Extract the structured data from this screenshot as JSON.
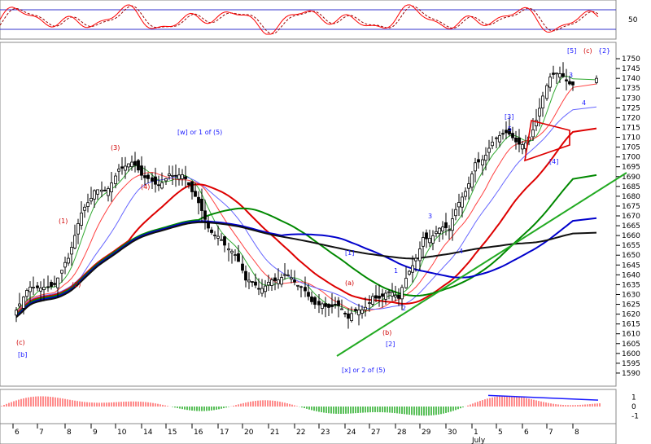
{
  "chart_data": [
    {
      "type": "line",
      "panel": "oscillator",
      "yticks": [
        50
      ],
      "ylim": [
        0,
        100
      ],
      "reference_lines": [
        80,
        20
      ],
      "series": [
        {
          "color": "#ff0000",
          "style": "solid"
        },
        {
          "color": "#990000",
          "style": "dashed"
        }
      ]
    },
    {
      "type": "candlestick",
      "panel": "price",
      "ylim": [
        1585,
        1755
      ],
      "yticks": [
        1590,
        1595,
        1600,
        1605,
        1610,
        1615,
        1620,
        1625,
        1630,
        1635,
        1640,
        1645,
        1650,
        1655,
        1660,
        1665,
        1670,
        1675,
        1680,
        1685,
        1690,
        1695,
        1700,
        1705,
        1710,
        1715,
        1720,
        1725,
        1730,
        1735,
        1740,
        1745,
        1750
      ],
      "x_days": [
        {
          "label": "6",
          "close": 1622
        },
        {
          "label": "7",
          "close": 1633
        },
        {
          "label": "8",
          "close": 1649
        },
        {
          "label": "9",
          "close": 1682
        },
        {
          "label": "10",
          "close": 1695
        },
        {
          "label": "14",
          "close": 1688
        },
        {
          "label": "15",
          "close": 1693
        },
        {
          "label": "16",
          "close": 1678
        },
        {
          "label": "17",
          "close": 1660
        },
        {
          "label": "20",
          "close": 1635
        },
        {
          "label": "21",
          "close": 1640
        },
        {
          "label": "22",
          "close": 1632
        },
        {
          "label": "23",
          "close": 1628
        },
        {
          "label": "24",
          "close": 1615
        },
        {
          "label": "27",
          "close": 1632
        },
        {
          "label": "28",
          "close": 1625
        },
        {
          "label": "29",
          "close": 1662
        },
        {
          "label": "30",
          "close": 1660
        },
        {
          "label": "1",
          "close": 1700
        },
        {
          "label": "5",
          "close": 1708
        },
        {
          "label": "6",
          "close": 1710
        },
        {
          "label": "7",
          "close": 1738
        },
        {
          "label": "8",
          "close": 1740
        }
      ],
      "month_label": "July",
      "moving_average_colors": [
        "#33aa33",
        "#ff4040",
        "#6666ff",
        "#dd0000",
        "#008800",
        "#0000cc",
        "#111111"
      ],
      "annotations": [
        {
          "text": "[w] or 1 of (5)",
          "color": "#1a1aff"
        },
        {
          "text": "[x] or 2 of (5)",
          "color": "#1a1aff"
        },
        {
          "text": "(3)",
          "color": "#d00000"
        },
        {
          "text": "(1)",
          "color": "#d00000"
        },
        {
          "text": "(2)",
          "color": "#d00000"
        },
        {
          "text": "(4)",
          "color": "#d00000"
        },
        {
          "text": "(c)",
          "color": "#d00000"
        },
        {
          "text": "[b]",
          "color": "#1a1aff"
        },
        {
          "text": "(a)",
          "color": "#d00000"
        },
        {
          "text": "[1]",
          "color": "#1a1aff"
        },
        {
          "text": "1",
          "color": "#1a1aff"
        },
        {
          "text": "2",
          "color": "#1a1aff"
        },
        {
          "text": "(b)",
          "color": "#d00000"
        },
        {
          "text": "[2]",
          "color": "#1a1aff"
        },
        {
          "text": "3",
          "color": "#1a1aff"
        },
        {
          "text": "4",
          "color": "#1a1aff"
        },
        {
          "text": "[3]",
          "color": "#1a1aff"
        },
        {
          "text": "5",
          "color": "#1a1aff"
        },
        {
          "text": "[4]",
          "color": "#1a1aff"
        },
        {
          "text": "3",
          "color": "#1a1aff"
        },
        {
          "text": "4",
          "color": "#1a1aff"
        },
        {
          "text": "[5]",
          "color": "#1a1aff"
        },
        {
          "text": "(c)",
          "color": "#d00000"
        },
        {
          "text": "{2}",
          "color": "#1a1aff"
        }
      ]
    },
    {
      "type": "bar",
      "panel": "histogram",
      "yticks": [
        1,
        0,
        -1
      ],
      "ylim": [
        -1.5,
        1.5
      ],
      "colors": {
        "positive": "#ff6666",
        "negative": "#22aa22"
      }
    }
  ]
}
